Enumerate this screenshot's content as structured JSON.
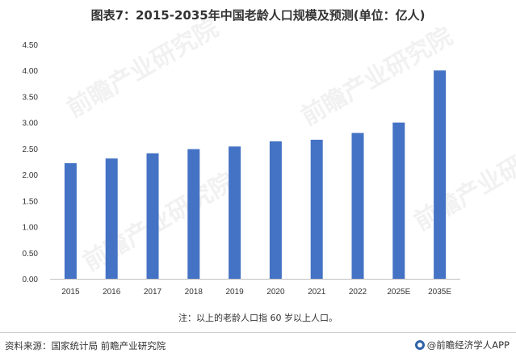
{
  "chart_data": {
    "type": "bar",
    "title": "图表7：2015-2035年中国老龄人口规模及预测(单位：亿人)",
    "categories": [
      "2015",
      "2016",
      "2017",
      "2018",
      "2019",
      "2020",
      "2021",
      "2022",
      "2025E",
      "2035E"
    ],
    "values": [
      2.22,
      2.31,
      2.41,
      2.49,
      2.54,
      2.64,
      2.67,
      2.8,
      3.0,
      4.0
    ],
    "ylim": [
      0,
      4.5
    ],
    "yticks": [
      "0.00",
      "0.50",
      "1.00",
      "1.50",
      "2.00",
      "2.50",
      "3.00",
      "3.50",
      "4.00",
      "4.50"
    ],
    "xlabel": "",
    "ylabel": "",
    "grid": false,
    "bar_color": "#4472c4"
  },
  "note": "注：以上的老龄人口指 60 岁以上人口。",
  "footer": {
    "source": "资料来源：国家统计局 前瞻产业研究院",
    "brand": "@前瞻经济学人APP"
  },
  "watermark": {
    "text": "前瞻产业研究院"
  }
}
